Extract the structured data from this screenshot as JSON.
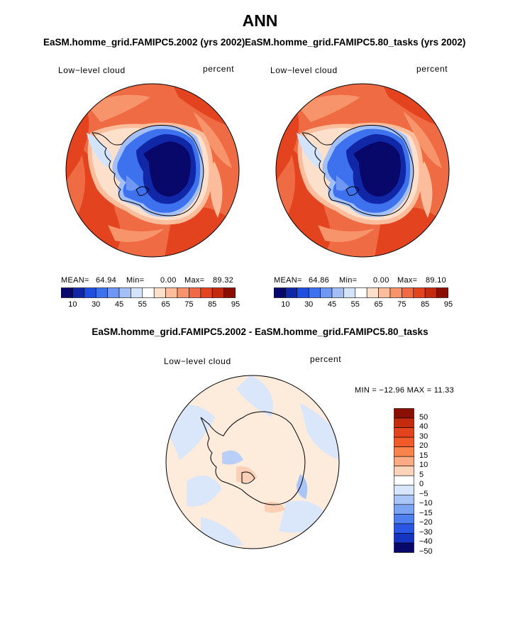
{
  "title": "ANN",
  "panels": [
    {
      "subtitle": "EaSM.homme_grid.FAMIPC5.2002 (yrs 2002)",
      "variable": "Low−level cloud",
      "units": "percent",
      "stats": {
        "mean_label": "MEAN=",
        "mean": "64.94",
        "min_label": "Min=",
        "min": "0.00",
        "max_label": "Max=",
        "max": "89.32"
      }
    },
    {
      "subtitle": "EaSM.homme_grid.FAMIPC5.80_tasks (yrs 2002)",
      "variable": "Low−level cloud",
      "units": "percent",
      "stats": {
        "mean_label": "MEAN=",
        "mean": "64.86",
        "min_label": "Min=",
        "min": "0.00",
        "max_label": "Max=",
        "max": "89.10"
      }
    }
  ],
  "colorbar_top": {
    "colors": [
      "#08086b",
      "#1027a8",
      "#1f4fe0",
      "#3d71ee",
      "#6e98f4",
      "#a2bff7",
      "#d3e4fa",
      "#ffffff",
      "#fde0cc",
      "#fbbd9b",
      "#f8946b",
      "#f26a44",
      "#e3441f",
      "#c42a0e",
      "#8a0f02"
    ],
    "labels": [
      "10",
      "30",
      "45",
      "55",
      "65",
      "75",
      "85",
      "95"
    ]
  },
  "diff_panel": {
    "subtitle": "EaSM.homme_grid.FAMIPC5.2002 - EaSM.homme_grid.FAMIPC5.80_tasks",
    "variable": "Low−level cloud",
    "units": "percent",
    "minmax": "MIN = −12.96 MAX =  11.33"
  },
  "colorbar_diff": {
    "colors": [
      "#8a0f02",
      "#c42a0e",
      "#e3441f",
      "#f15b2c",
      "#f8834d",
      "#fbab83",
      "#fdd3ba",
      "#ffffff",
      "#d8e6fb",
      "#a9c4f7",
      "#7ca4f3",
      "#4f7eee",
      "#2a56e3",
      "#1534c0",
      "#08086b"
    ],
    "labels": [
      "50",
      "40",
      "30",
      "20",
      "15",
      "10",
      "5",
      "0",
      "−5",
      "−10",
      "−15",
      "−20",
      "−30",
      "−40",
      "−50"
    ]
  }
}
